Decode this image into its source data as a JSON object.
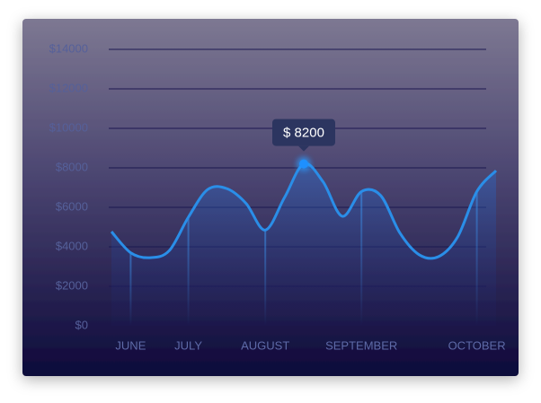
{
  "chart_data": {
    "type": "line",
    "categories": [
      null,
      "JUNE",
      null,
      null,
      "JULY",
      null,
      null,
      null,
      "AUGUST",
      null,
      null,
      null,
      null,
      "SEPTEMBER",
      null,
      null,
      null,
      null,
      null,
      "OCTOBER",
      null
    ],
    "series": [
      {
        "color": "#2a8ee8",
        "values": [
          4770,
          3700,
          3450,
          3800,
          5500,
          6900,
          6950,
          6200,
          4850,
          6500,
          8200,
          7300,
          5550,
          6800,
          6600,
          4700,
          3600,
          3500,
          4500,
          6800,
          7860
        ],
        "value_labels": [
          null,
          null,
          null,
          null,
          null,
          null,
          null,
          null,
          null,
          null,
          "$ 8200",
          null,
          null,
          null,
          null,
          null,
          null,
          null,
          null,
          null,
          null
        ]
      }
    ],
    "ylim": [
      0,
      14000
    ],
    "yticks": [
      {
        "value": 0,
        "label": "$0"
      },
      {
        "value": 2000,
        "label": "$2000"
      },
      {
        "value": 4000,
        "label": "$4000"
      },
      {
        "value": 6000,
        "label": "$6000"
      },
      {
        "value": 8000,
        "label": "$8000"
      },
      {
        "value": 10000,
        "label": "$10000"
      },
      {
        "value": 12000,
        "label": "$12000"
      },
      {
        "value": 14000,
        "label": "$14000"
      }
    ],
    "grid": true
  }
}
